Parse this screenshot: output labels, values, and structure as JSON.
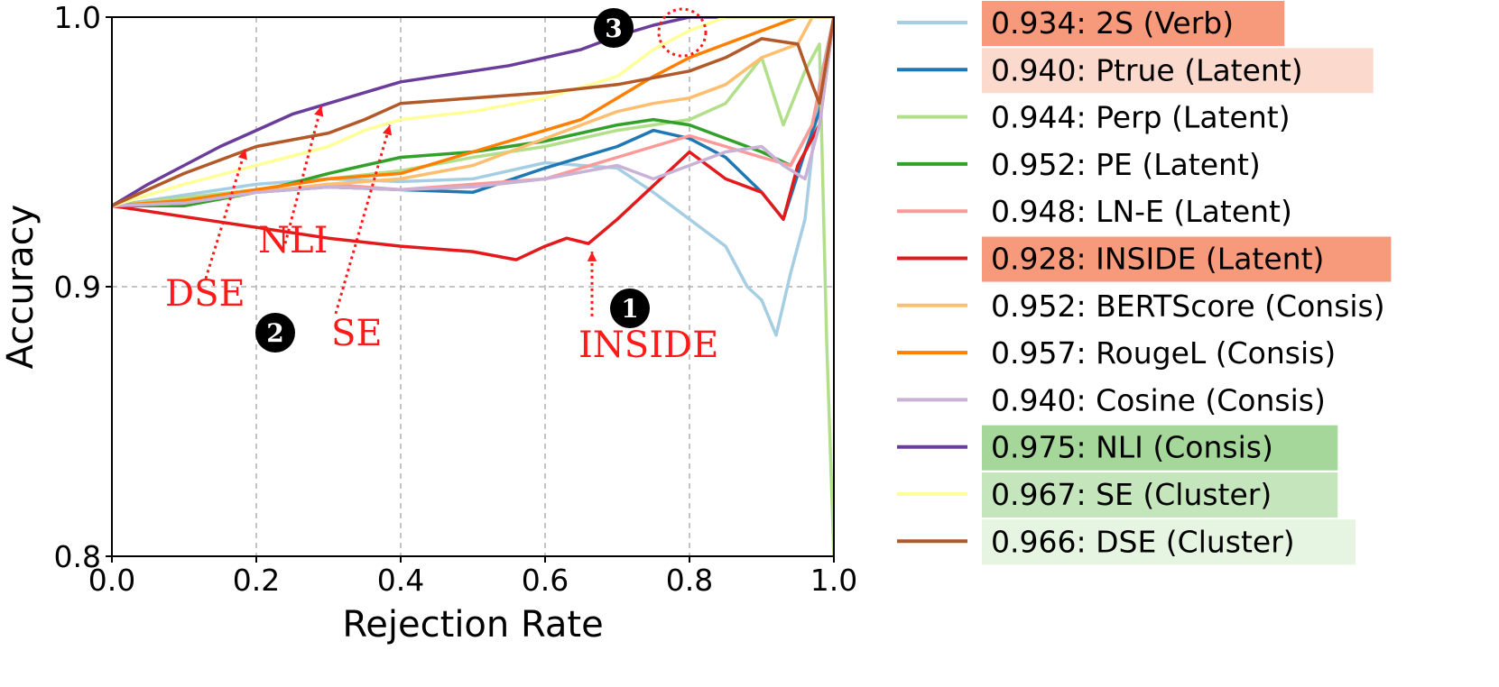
{
  "chart_data": {
    "type": "line",
    "xlabel": "Rejection Rate",
    "ylabel": "Accuracy",
    "xlim": [
      0.0,
      1.0
    ],
    "ylim": [
      0.8,
      1.0
    ],
    "xticks": [
      "0.0",
      "0.2",
      "0.4",
      "0.6",
      "0.8",
      "1.0"
    ],
    "yticks": [
      "0.8",
      "0.9",
      "1.0"
    ],
    "grid": "dashed",
    "legend_position": "right-outside",
    "series": [
      {
        "name": "0.934: 2S (Verb)",
        "color": "#a6cee3",
        "highlight": "#f79a7c",
        "x": [
          0,
          0.1,
          0.2,
          0.3,
          0.4,
          0.5,
          0.6,
          0.7,
          0.75,
          0.8,
          0.85,
          0.88,
          0.9,
          0.92,
          0.94,
          0.96,
          0.98,
          1.0
        ],
        "y": [
          0.93,
          0.934,
          0.938,
          0.94,
          0.939,
          0.94,
          0.946,
          0.944,
          0.935,
          0.925,
          0.915,
          0.9,
          0.895,
          0.882,
          0.905,
          0.925,
          0.975,
          1.0
        ]
      },
      {
        "name": "0.940: Ptrue (Latent)",
        "color": "#1f78b4",
        "highlight": "#fbdacd",
        "x": [
          0,
          0.1,
          0.2,
          0.3,
          0.4,
          0.5,
          0.6,
          0.7,
          0.75,
          0.8,
          0.85,
          0.9,
          0.93,
          0.96,
          0.98,
          1.0
        ],
        "y": [
          0.93,
          0.933,
          0.935,
          0.937,
          0.936,
          0.935,
          0.944,
          0.952,
          0.958,
          0.955,
          0.948,
          0.935,
          0.925,
          0.95,
          0.965,
          1.0
        ]
      },
      {
        "name": "0.944: Perp (Latent)",
        "color": "#b2df8a",
        "highlight": null,
        "x": [
          0,
          0.1,
          0.2,
          0.3,
          0.4,
          0.5,
          0.6,
          0.7,
          0.8,
          0.85,
          0.9,
          0.93,
          0.96,
          0.98,
          0.99,
          1.0
        ],
        "y": [
          0.93,
          0.933,
          0.936,
          0.94,
          0.943,
          0.948,
          0.952,
          0.958,
          0.962,
          0.968,
          0.985,
          0.96,
          0.98,
          0.99,
          0.88,
          0.8
        ]
      },
      {
        "name": "0.952: PE (Latent)",
        "color": "#33a02c",
        "highlight": null,
        "x": [
          0,
          0.1,
          0.2,
          0.3,
          0.4,
          0.5,
          0.6,
          0.7,
          0.75,
          0.8,
          0.85,
          0.9,
          0.94,
          0.97,
          1.0
        ],
        "y": [
          0.93,
          0.93,
          0.935,
          0.942,
          0.948,
          0.95,
          0.954,
          0.96,
          0.962,
          0.96,
          0.955,
          0.95,
          0.945,
          0.96,
          1.0
        ]
      },
      {
        "name": "0.948: LN-E (Latent)",
        "color": "#fb9a99",
        "highlight": null,
        "x": [
          0,
          0.1,
          0.2,
          0.3,
          0.4,
          0.5,
          0.6,
          0.7,
          0.75,
          0.8,
          0.85,
          0.9,
          0.94,
          0.97,
          1.0
        ],
        "y": [
          0.93,
          0.931,
          0.935,
          0.938,
          0.936,
          0.938,
          0.94,
          0.948,
          0.952,
          0.956,
          0.952,
          0.948,
          0.945,
          0.96,
          1.0
        ]
      },
      {
        "name": "0.928: INSIDE (Latent)",
        "color": "#e31a1c",
        "highlight": "#f79a7c",
        "x": [
          0,
          0.1,
          0.2,
          0.3,
          0.4,
          0.5,
          0.56,
          0.6,
          0.63,
          0.66,
          0.7,
          0.74,
          0.78,
          0.8,
          0.85,
          0.9,
          0.93,
          0.95,
          0.98,
          1.0
        ],
        "y": [
          0.93,
          0.926,
          0.922,
          0.918,
          0.915,
          0.913,
          0.91,
          0.915,
          0.918,
          0.916,
          0.925,
          0.935,
          0.945,
          0.95,
          0.94,
          0.935,
          0.925,
          0.945,
          0.96,
          1.0
        ]
      },
      {
        "name": "0.952: BERTScore (Consis)",
        "color": "#fdbf6f",
        "highlight": null,
        "x": [
          0,
          0.1,
          0.2,
          0.3,
          0.4,
          0.5,
          0.6,
          0.7,
          0.75,
          0.8,
          0.85,
          0.9,
          0.95,
          0.97,
          1.0
        ],
        "y": [
          0.93,
          0.932,
          0.935,
          0.938,
          0.94,
          0.945,
          0.955,
          0.965,
          0.968,
          0.97,
          0.975,
          0.985,
          0.99,
          1.0,
          1.0
        ]
      },
      {
        "name": "0.957: RougeL (Consis)",
        "color": "#ff7f00",
        "highlight": null,
        "x": [
          0,
          0.1,
          0.2,
          0.3,
          0.4,
          0.5,
          0.6,
          0.65,
          0.7,
          0.75,
          0.8,
          0.85,
          0.9,
          0.93,
          0.95,
          1.0
        ],
        "y": [
          0.93,
          0.932,
          0.936,
          0.94,
          0.942,
          0.95,
          0.958,
          0.962,
          0.97,
          0.978,
          0.985,
          0.99,
          0.995,
          0.998,
          1.0,
          1.0
        ]
      },
      {
        "name": "0.940: Cosine (Consis)",
        "color": "#cab2d6",
        "highlight": null,
        "x": [
          0,
          0.1,
          0.2,
          0.3,
          0.4,
          0.5,
          0.6,
          0.7,
          0.75,
          0.8,
          0.85,
          0.9,
          0.93,
          0.96,
          0.98,
          1.0
        ],
        "y": [
          0.93,
          0.931,
          0.935,
          0.937,
          0.936,
          0.937,
          0.94,
          0.945,
          0.94,
          0.945,
          0.95,
          0.952,
          0.945,
          0.94,
          0.96,
          1.0
        ]
      },
      {
        "name": "0.975: NLI (Consis)",
        "color": "#6a3d9a",
        "highlight": "#a5d79a",
        "x": [
          0,
          0.05,
          0.1,
          0.15,
          0.2,
          0.25,
          0.3,
          0.35,
          0.4,
          0.45,
          0.5,
          0.55,
          0.6,
          0.65,
          0.7,
          0.75,
          0.8,
          0.85,
          1.0
        ],
        "y": [
          0.93,
          0.938,
          0.945,
          0.952,
          0.958,
          0.964,
          0.968,
          0.972,
          0.976,
          0.978,
          0.98,
          0.982,
          0.985,
          0.988,
          0.993,
          0.997,
          1.0,
          1.0,
          1.0
        ]
      },
      {
        "name": "0.967: SE (Cluster)",
        "color": "#ffff99",
        "highlight": "#c5e6bd",
        "x": [
          0,
          0.1,
          0.2,
          0.3,
          0.35,
          0.4,
          0.5,
          0.6,
          0.7,
          0.75,
          0.8,
          0.85,
          1.0
        ],
        "y": [
          0.93,
          0.938,
          0.945,
          0.952,
          0.958,
          0.962,
          0.965,
          0.97,
          0.978,
          0.988,
          0.995,
          1.0,
          1.0
        ]
      },
      {
        "name": "0.966: DSE (Cluster)",
        "color": "#b15928",
        "highlight": "#e6f4e2",
        "x": [
          0,
          0.1,
          0.2,
          0.3,
          0.35,
          0.4,
          0.5,
          0.6,
          0.7,
          0.8,
          0.85,
          0.9,
          0.95,
          0.97,
          0.98,
          1.0
        ],
        "y": [
          0.93,
          0.942,
          0.952,
          0.957,
          0.962,
          0.968,
          0.97,
          0.972,
          0.975,
          0.98,
          0.985,
          0.992,
          0.99,
          0.975,
          0.968,
          1.0
        ]
      }
    ],
    "annotations": [
      {
        "text": "DSE",
        "target": [
          0.185,
          0.951
        ],
        "tail": [
          0.13,
          0.903
        ]
      },
      {
        "text": "NLI",
        "target": [
          0.29,
          0.967
        ],
        "tail": [
          0.24,
          0.916
        ]
      },
      {
        "text": "SE",
        "target": [
          0.385,
          0.96
        ],
        "tail": [
          0.31,
          0.89
        ]
      },
      {
        "text": "INSIDE",
        "target": [
          0.665,
          0.913
        ],
        "tail": [
          0.665,
          0.889
        ]
      }
    ],
    "badges": [
      "1",
      "2",
      "3"
    ],
    "highlight_circle": {
      "x": 0.79,
      "y": 0.9943
    }
  }
}
